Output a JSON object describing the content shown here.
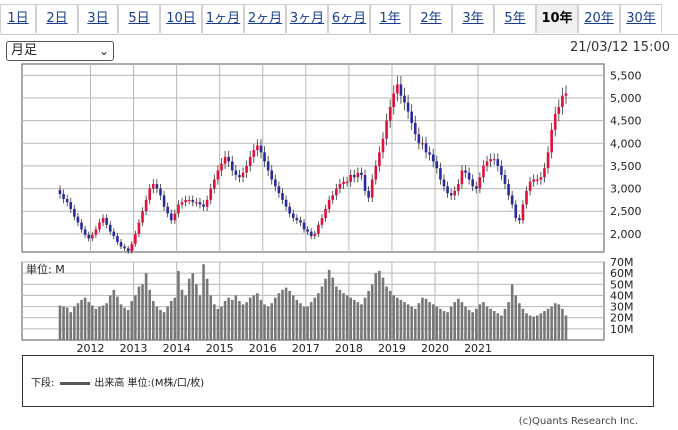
{
  "tabs": [
    "1日",
    "2日",
    "3日",
    "5日",
    "10日",
    "1ヶ月",
    "2ヶ月",
    "3ヶ月",
    "6ヶ月",
    "1年",
    "2年",
    "3年",
    "5年",
    "10年",
    "20年",
    "30年"
  ],
  "active_tab": "10年",
  "period_select": {
    "value": "月足"
  },
  "timestamp": "21/03/12 15:00",
  "volume_label": "単位: M",
  "legend": {
    "prefix": "下段:",
    "series": "出来高 単位:(M株/口/枚)"
  },
  "copyright": "(c)Quants Research Inc.",
  "colors": {
    "up": "#e0103c",
    "down": "#2a2aa0",
    "volume": "#777777",
    "grid": "#b8b8b8"
  },
  "chart_data": {
    "type": "candlestick",
    "price_axis": {
      "ticks": [
        2000,
        2500,
        3000,
        3500,
        4000,
        4500,
        5000,
        5500
      ],
      "ylim": [
        1600,
        5750
      ]
    },
    "volume_axis": {
      "ticks": [
        "10M",
        "20M",
        "30M",
        "40M",
        "50M",
        "60M",
        "70M"
      ],
      "ylim": [
        0,
        70
      ]
    },
    "x_ticks": [
      "2012",
      "2013",
      "2014",
      "2015",
      "2016",
      "2017",
      "2018",
      "2019",
      "2020",
      "2021"
    ],
    "series": [
      {
        "name": "price",
        "closes": [
          2880,
          2770,
          2700,
          2550,
          2380,
          2250,
          2100,
          1980,
          1900,
          1980,
          2100,
          2250,
          2350,
          2200,
          2050,
          1950,
          1820,
          1720,
          1680,
          1620,
          1780,
          2000,
          2250,
          2500,
          2750,
          3000,
          3100,
          3000,
          2850,
          2600,
          2450,
          2300,
          2450,
          2650,
          2700,
          2750,
          2750,
          2700,
          2700,
          2650,
          2600,
          2750,
          3000,
          3200,
          3400,
          3550,
          3700,
          3600,
          3400,
          3300,
          3250,
          3350,
          3500,
          3700,
          3850,
          3950,
          3800,
          3600,
          3400,
          3200,
          3050,
          2900,
          2750,
          2600,
          2450,
          2350,
          2300,
          2250,
          2100,
          2050,
          1950,
          2000,
          2200,
          2350,
          2550,
          2750,
          2850,
          3000,
          3100,
          3150,
          3150,
          3300,
          3250,
          3350,
          3300,
          2950,
          2800,
          3200,
          3500,
          3800,
          4100,
          4500,
          4800,
          5100,
          5300,
          5050,
          4900,
          4700,
          4450,
          4200,
          4000,
          4000,
          3800,
          3750,
          3600,
          3450,
          3200,
          3050,
          2900,
          2850,
          2950,
          3100,
          3400,
          3350,
          3200,
          3050,
          3000,
          3250,
          3500,
          3600,
          3650,
          3650,
          3500,
          3300,
          3100,
          2850,
          2650,
          2350,
          2300,
          2650,
          2950,
          3150,
          3200,
          3200,
          3250,
          3450,
          3800,
          4300,
          4650,
          4800,
          5050,
          5100
        ]
      },
      {
        "name": "volume",
        "values": [
          31,
          30,
          29,
          25,
          30,
          33,
          36,
          38,
          34,
          31,
          28,
          30,
          31,
          33,
          40,
          45,
          39,
          32,
          29,
          27,
          35,
          40,
          48,
          50,
          60,
          45,
          35,
          30,
          27,
          25,
          30,
          35,
          38,
          62,
          45,
          40,
          55,
          60,
          50,
          40,
          68,
          55,
          40,
          32,
          28,
          30,
          35,
          38,
          36,
          40,
          35,
          32,
          34,
          38,
          40,
          42,
          36,
          32,
          30,
          33,
          38,
          42,
          45,
          47,
          44,
          40,
          36,
          33,
          30,
          30,
          34,
          38,
          42,
          48,
          55,
          63,
          56,
          48,
          45,
          42,
          40,
          38,
          36,
          34,
          32,
          38,
          44,
          50,
          60,
          62,
          56,
          48,
          44,
          40,
          38,
          36,
          34,
          32,
          30,
          28,
          33,
          38,
          37,
          34,
          32,
          30,
          28,
          26,
          25,
          30,
          34,
          37,
          34,
          30,
          27,
          25,
          28,
          32,
          34,
          30,
          28,
          26,
          24,
          22,
          28,
          34,
          50,
          40,
          33,
          28,
          24,
          22,
          21,
          22,
          24,
          26,
          28,
          30,
          33,
          32,
          28,
          22
        ]
      }
    ]
  }
}
